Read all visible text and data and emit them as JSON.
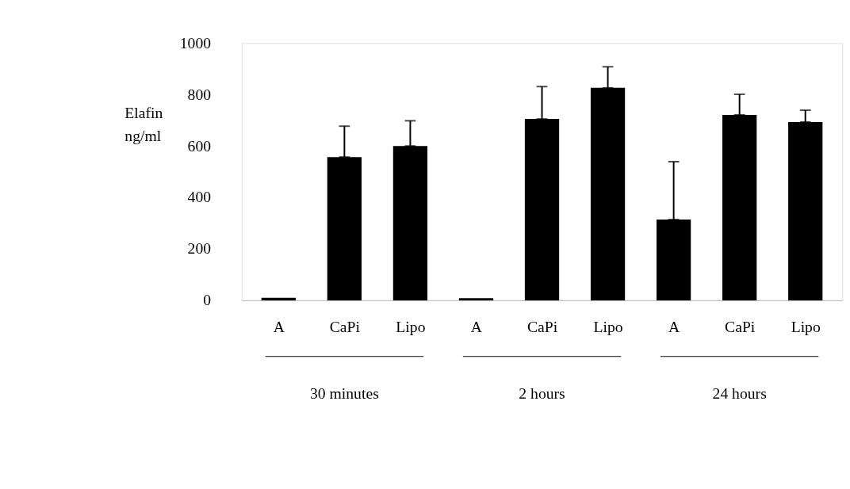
{
  "chart_data": {
    "type": "bar",
    "ylabel": "Elafin ng/ml",
    "categories": [
      "A",
      "CaPi",
      "Lipo",
      "A",
      "CaPi",
      "Lipo",
      "A",
      "CaPi",
      "Lipo"
    ],
    "values": [
      10,
      557,
      600,
      8,
      705,
      826,
      314,
      721,
      693
    ],
    "errors": [
      null,
      [
        557,
        677
      ],
      [
        600,
        698
      ],
      null,
      [
        705,
        831
      ],
      [
        826,
        908
      ],
      [
        314,
        539
      ],
      [
        721,
        801
      ],
      [
        693,
        739
      ]
    ],
    "color": "#000000",
    "ylim": [
      0,
      1000
    ],
    "yticks": [
      0,
      200,
      400,
      600,
      800,
      {
        "value": 1000,
        "label": "1000"
      }
    ],
    "grid": false,
    "annotations": [
      "30 minutes",
      "2 hours",
      "24 hours"
    ]
  }
}
